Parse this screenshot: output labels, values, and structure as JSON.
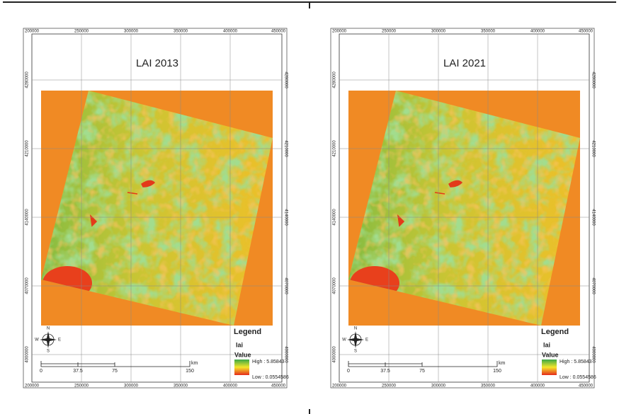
{
  "panels": [
    {
      "title": "LAI 2013",
      "x_labels": [
        "200000",
        "250000",
        "300000",
        "350000",
        "400000",
        "450000"
      ],
      "y_labels": [
        "4280000",
        "4210000",
        "4140000",
        "4070000",
        "4000000"
      ],
      "compass": [
        "N",
        "E",
        "S",
        "W"
      ],
      "scale": {
        "labels": [
          "0",
          "37.5",
          "75",
          "150"
        ],
        "unit": "km"
      },
      "legend": {
        "title": "Legend",
        "layer": "lai",
        "field": "Value",
        "high": "High : 5.85843",
        "low": "Low : 0.0554586"
      }
    },
    {
      "title": "LAI 2021",
      "x_labels": [
        "200000",
        "250000",
        "300000",
        "350000",
        "400000",
        "450000"
      ],
      "y_labels": [
        "4280000",
        "4210000",
        "4140000",
        "4070000",
        "4000000"
      ],
      "compass": [
        "N",
        "E",
        "S",
        "W"
      ],
      "scale": {
        "labels": [
          "0",
          "37.5",
          "75",
          "150"
        ],
        "unit": "km"
      },
      "legend": {
        "title": "Legend",
        "layer": "lai",
        "field": "Value",
        "high": "High : 5.85843",
        "low": "Low : 0.0554586"
      }
    }
  ]
}
